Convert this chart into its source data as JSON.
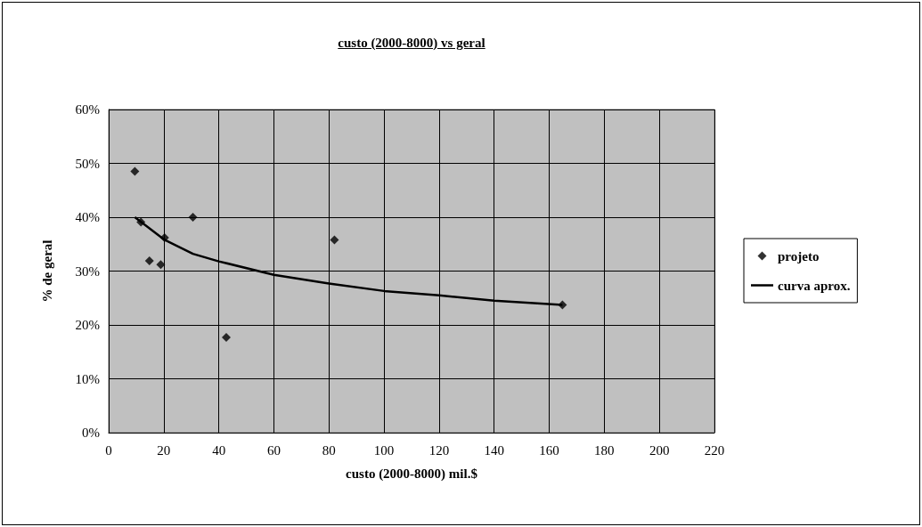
{
  "chart_data": {
    "type": "scatter",
    "title": "custo (2000-8000) vs geral",
    "xlabel": "custo (2000-8000) mil.$",
    "ylabel": "% de geral",
    "series": [
      {
        "name": "projeto",
        "color": "#000000",
        "marker": "diamond",
        "x": [
          9.5,
          11.7,
          14.8,
          18.9,
          20.3,
          30.6,
          42.7,
          82.0,
          164.8
        ],
        "values": [
          48.5,
          39.1,
          31.9,
          31.2,
          36.2,
          40.0,
          17.7,
          35.8,
          23.7
        ]
      },
      {
        "name": "curva aprox.",
        "type": "line",
        "color": "#000000",
        "marker": "none",
        "line_style": "solid",
        "x": [
          9.5,
          20.3,
          30.6,
          40,
          60,
          80,
          100,
          120,
          140,
          164.8
        ],
        "values": [
          40.0,
          35.8,
          33.2,
          31.8,
          29.3,
          27.7,
          26.3,
          25.5,
          24.5,
          23.7
        ]
      }
    ],
    "xlim": [
      0,
      220
    ],
    "xticks": [
      0,
      20,
      40,
      60,
      80,
      100,
      120,
      140,
      160,
      180,
      200,
      220
    ],
    "ylim": [
      0,
      60
    ],
    "yticks": [
      {
        "value": 0,
        "label": "0%"
      },
      {
        "value": 10,
        "label": "10%"
      },
      {
        "value": 20,
        "label": "20%"
      },
      {
        "value": 30,
        "label": "30%"
      },
      {
        "value": 40,
        "label": "40%"
      },
      {
        "value": 50,
        "label": "50%"
      },
      {
        "value": 60,
        "label": "60%"
      }
    ],
    "grid": true,
    "legend": "right"
  }
}
